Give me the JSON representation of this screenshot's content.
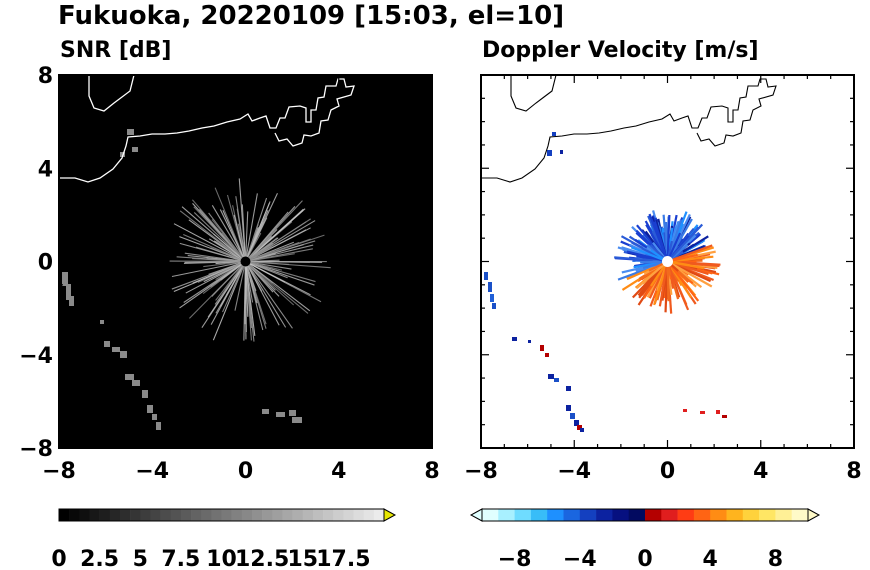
{
  "title": "Fukuoka, 20220109 [15:03, el=10]",
  "chart_data": [
    {
      "type": "heatmap",
      "title": "SNR [dB]",
      "xlim": [
        -8,
        8
      ],
      "ylim": [
        -8,
        8
      ],
      "x_ticks": [
        "−8",
        "−4",
        "0",
        "4",
        "8"
      ],
      "y_ticks": [
        "8",
        "4",
        "0",
        "−4",
        "−8"
      ],
      "x_tick_values": [
        -8,
        -4,
        0,
        4,
        8
      ],
      "y_tick_values": [
        8,
        4,
        0,
        -4,
        -8
      ],
      "background": "#000000",
      "echo_color": "#9a9a9a",
      "radar_site": [
        0,
        0
      ],
      "echo_radius_km": 3.2,
      "colorbar": {
        "range": [
          0,
          20
        ],
        "tick_labels": [
          "0",
          "2.5",
          "5",
          "7.5",
          "10",
          "12.5",
          "15",
          "17.5"
        ],
        "extend": "max",
        "end_color": "#e6e600"
      }
    },
    {
      "type": "heatmap",
      "title": "Doppler Velocity [m/s]",
      "xlim": [
        -8,
        8
      ],
      "ylim": [
        -8,
        8
      ],
      "x_ticks": [
        "−8",
        "−4",
        "0",
        "4",
        "8"
      ],
      "y_ticks": [
        "8",
        "4",
        "0",
        "−4",
        "−8"
      ],
      "x_tick_values": [
        -8,
        -4,
        0,
        4,
        8
      ],
      "y_tick_values": [
        8,
        4,
        0,
        -4,
        -8
      ],
      "background": "#ffffff",
      "radar_site": [
        0,
        0
      ],
      "approaching_color": "#2a5bd7",
      "receding_color": "#f26b1d",
      "echo_radius_km": 2.2,
      "colorbar": {
        "range": [
          -10,
          10
        ],
        "tick_labels": [
          "−8",
          "−4",
          "0",
          "4",
          "8"
        ],
        "tick_values": [
          -8,
          -4,
          0,
          4,
          8
        ],
        "extend": "both",
        "colors_negative": [
          "#e0ffff",
          "#a8f0ff",
          "#6fdcff",
          "#38bdf8",
          "#1e90ff",
          "#1a66e0",
          "#1440c0",
          "#0c22a0",
          "#061080",
          "#020a60"
        ],
        "colors_positive": [
          "#b40000",
          "#e01e1e",
          "#ff3c14",
          "#ff6414",
          "#ff8c14",
          "#ffb41e",
          "#ffd23c",
          "#ffe664",
          "#fff096",
          "#fffac8"
        ]
      }
    }
  ]
}
